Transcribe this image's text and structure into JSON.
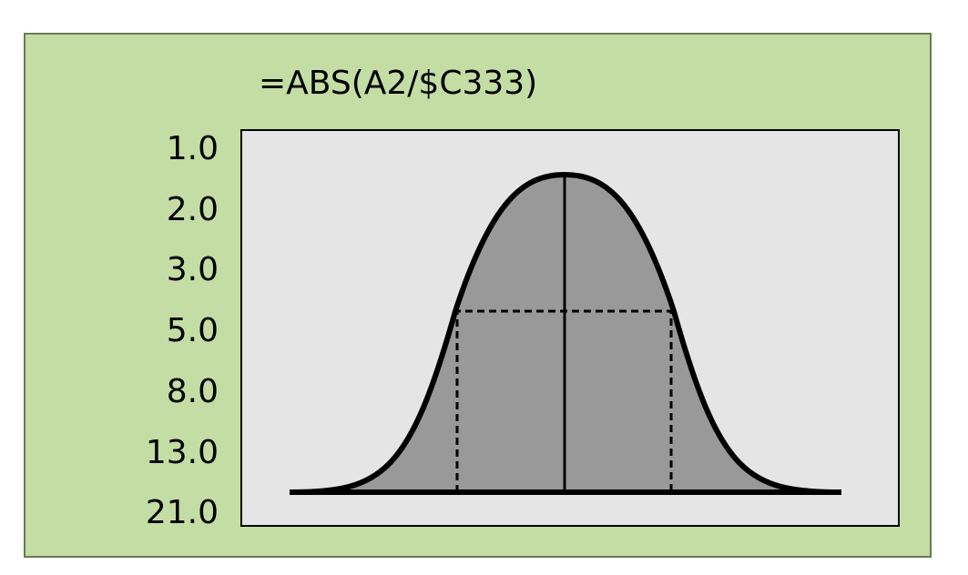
{
  "formula": "=ABS(A2/$C333)",
  "y_labels": [
    "1.0",
    "2.0",
    "3.0",
    "5.0",
    "8.0",
    "13.0",
    "21.0"
  ],
  "colors": {
    "panel_bg": "#c3dda4",
    "panel_border": "#6b7a55",
    "plot_bg": "#e5e5e5",
    "curve_fill": "#999999",
    "stroke": "#000000"
  }
}
